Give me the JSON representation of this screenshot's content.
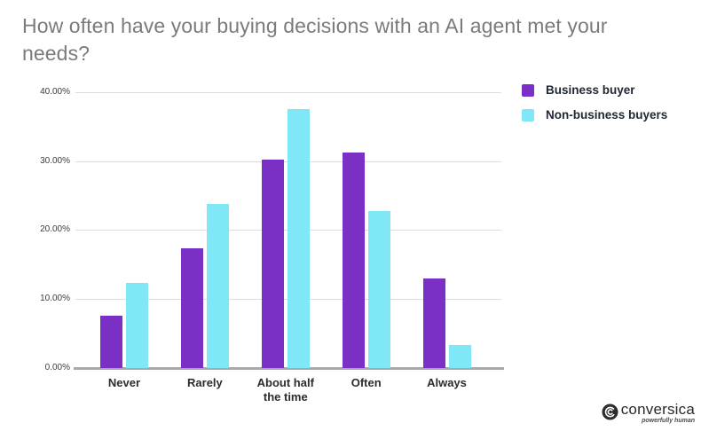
{
  "chart_data": {
    "type": "bar",
    "title": "How often have your buying decisions with an AI agent met your needs?",
    "categories": [
      "Never",
      "Rarely",
      "About half\nthe time",
      "Often",
      "Always"
    ],
    "series": [
      {
        "name": "Business buyer",
        "color": "#7A2FC5",
        "values": [
          7.6,
          17.4,
          30.2,
          31.2,
          13.0
        ]
      },
      {
        "name": "Non-business buyers",
        "color": "#80E7F7",
        "values": [
          12.4,
          23.8,
          37.5,
          22.7,
          3.3
        ]
      }
    ],
    "xlabel": "",
    "ylabel": "",
    "ylim": [
      0,
      40
    ],
    "yticks": [
      {
        "value": 40,
        "label": "40.00%"
      },
      {
        "value": 30,
        "label": "30.00%"
      },
      {
        "value": 20,
        "label": "20.00%"
      },
      {
        "value": 10,
        "label": "10.00%"
      },
      {
        "value": 0,
        "label": "0.00%"
      }
    ],
    "grid": true,
    "legend_position": "top-right"
  },
  "footer": {
    "brand": "conversica",
    "tagline": "powerfully human"
  },
  "colors": {
    "grid": "#dcdcdc",
    "axis_line": "#a9a9a9",
    "tick_label": "#3c3c3c",
    "category_label": "#2b2b2b",
    "legend_label": "#1f2733",
    "title": "#7b7b7b"
  }
}
